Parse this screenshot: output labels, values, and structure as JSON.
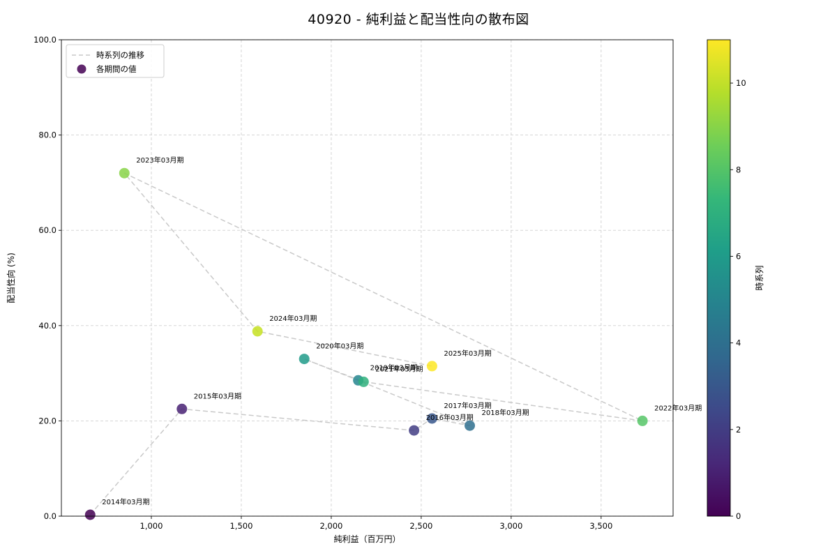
{
  "chart_data": {
    "type": "scatter",
    "title": "40920 - 純利益と配当性向の散布図",
    "xlabel": "純利益（百万円）",
    "ylabel": "配当性向 (%)",
    "xlim": [
      500,
      3900
    ],
    "ylim": [
      0,
      100
    ],
    "grid": true,
    "x_ticks": [
      1000,
      1500,
      2000,
      2500,
      3000,
      3500
    ],
    "x_tick_labels": [
      "1,000",
      "1,500",
      "2,000",
      "2,500",
      "3,000",
      "3,500"
    ],
    "y_ticks": [
      0,
      20,
      40,
      60,
      80,
      100
    ],
    "y_tick_labels": [
      "0.0",
      "20.0",
      "40.0",
      "60.0",
      "80.0",
      "100.0"
    ],
    "line_color": "#c9c9c9",
    "line_style": "dashed",
    "marker_opacity": 0.85,
    "legend": {
      "position": "upper left",
      "entries": [
        {
          "label": "時系列の推移",
          "type": "dashed-line",
          "color": "#c9c9c9"
        },
        {
          "label": "各期間の値",
          "type": "marker",
          "color": "#440154"
        }
      ]
    },
    "points": [
      {
        "label": "2014年03月期",
        "x": 660,
        "y": 0.3,
        "t": 0,
        "color": "#440154"
      },
      {
        "label": "2015年03月期",
        "x": 1170,
        "y": 22.5,
        "t": 1,
        "color": "#482173"
      },
      {
        "label": "2016年03月期",
        "x": 2460,
        "y": 18.0,
        "t": 2,
        "color": "#423d84"
      },
      {
        "label": "2017年03月期",
        "x": 2560,
        "y": 20.5,
        "t": 3,
        "color": "#38578c"
      },
      {
        "label": "2018年03月期",
        "x": 2770,
        "y": 19.0,
        "t": 4,
        "color": "#2e6f8e"
      },
      {
        "label": "2019年03月期",
        "x": 2150,
        "y": 28.5,
        "t": 5,
        "color": "#25858e"
      },
      {
        "label": "2020年03月期",
        "x": 1850,
        "y": 33.0,
        "t": 6,
        "color": "#209b8a"
      },
      {
        "label": "2021年03月期",
        "x": 2180,
        "y": 28.2,
        "t": 7,
        "color": "#2fb07d"
      },
      {
        "label": "2022年03月期",
        "x": 3730,
        "y": 20.0,
        "t": 8,
        "color": "#56c667"
      },
      {
        "label": "2023年03月期",
        "x": 850,
        "y": 72.0,
        "t": 9,
        "color": "#88d448"
      },
      {
        "label": "2024年03月期",
        "x": 1590,
        "y": 38.8,
        "t": 10,
        "color": "#c5e021"
      },
      {
        "label": "2025年03月期",
        "x": 2560,
        "y": 31.5,
        "t": 11,
        "color": "#fde725"
      }
    ],
    "colorbar": {
      "label": "時系列",
      "min": 0,
      "max": 11,
      "ticks": [
        0,
        2,
        4,
        6,
        8,
        10
      ],
      "colormap": "viridis",
      "gradient": [
        "#440154",
        "#482878",
        "#3e4989",
        "#31688e",
        "#26828e",
        "#1f9e89",
        "#35b779",
        "#6ece58",
        "#b5de2b",
        "#fde725"
      ]
    }
  }
}
